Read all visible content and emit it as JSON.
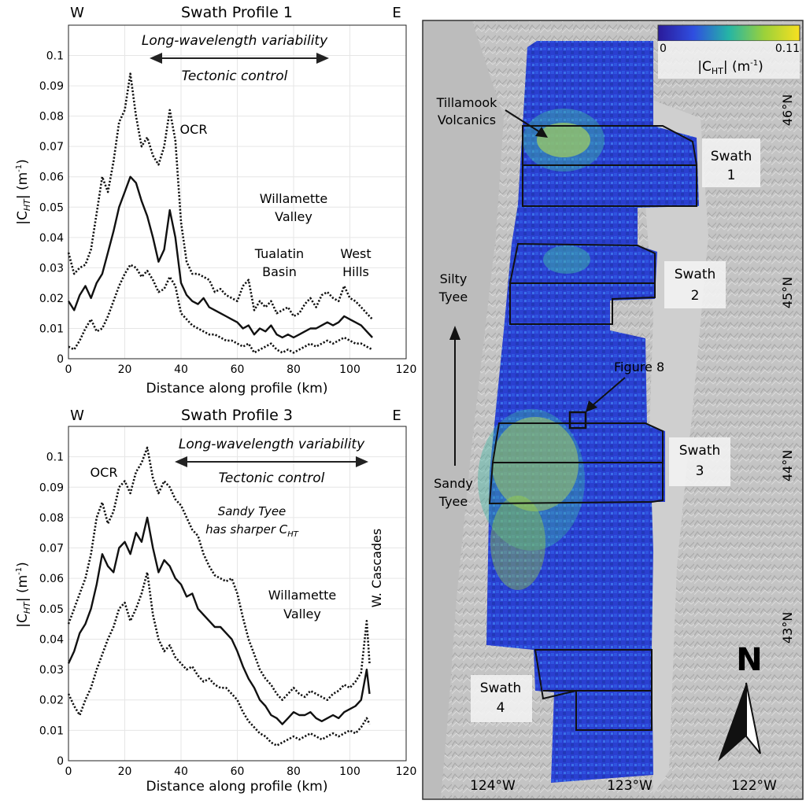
{
  "colors": {
    "series_line": "#111111",
    "grid": "#e6e6e6",
    "axis": "#222222",
    "map_land": "#c8c8c8",
    "map_background": "#b8b8b8",
    "map_label_box": "#f0f0f0",
    "colorbar_low": "#2a1a9a",
    "colorbar_mid": "#25b5a5",
    "colorbar_high": "#f8e020"
  },
  "chart_data": [
    {
      "type": "line",
      "title": "Swath Profile 1",
      "corner_left": "W",
      "corner_right": "E",
      "xlabel": "Distance along profile (km)",
      "ylabel_main": "|C",
      "ylabel_sub": "HT",
      "ylabel_tail": "| (m",
      "ylabel_sup": "-1",
      "ylabel_end": ")",
      "xlim": [
        0,
        120
      ],
      "ylim": [
        0,
        0.11
      ],
      "xticks": [
        "0",
        "20",
        "40",
        "60",
        "80",
        "100",
        "120"
      ],
      "yticks": [
        "0",
        "0.01",
        "0.02",
        "0.03",
        "0.04",
        "0.05",
        "0.06",
        "0.07",
        "0.08",
        "0.09",
        "0.1"
      ],
      "grid": true,
      "series": [
        {
          "style": "solid",
          "x": [
            0,
            2,
            4,
            6,
            8,
            10,
            12,
            14,
            16,
            18,
            20,
            22,
            24,
            26,
            28,
            30,
            32,
            34,
            36,
            38,
            40,
            42,
            44,
            46,
            48,
            50,
            52,
            54,
            56,
            58,
            60,
            62,
            64,
            66,
            68,
            70,
            72,
            74,
            76,
            78,
            80,
            82,
            84,
            86,
            88,
            90,
            92,
            94,
            96,
            98,
            100,
            102,
            104,
            106,
            108
          ],
          "y": [
            0.019,
            0.016,
            0.021,
            0.024,
            0.02,
            0.025,
            0.028,
            0.035,
            0.042,
            0.05,
            0.055,
            0.06,
            0.058,
            0.052,
            0.047,
            0.04,
            0.032,
            0.036,
            0.049,
            0.04,
            0.025,
            0.021,
            0.019,
            0.018,
            0.02,
            0.017,
            0.016,
            0.015,
            0.014,
            0.013,
            0.012,
            0.01,
            0.011,
            0.008,
            0.01,
            0.009,
            0.011,
            0.008,
            0.007,
            0.008,
            0.007,
            0.008,
            0.009,
            0.01,
            0.01,
            0.011,
            0.012,
            0.011,
            0.012,
            0.014,
            0.013,
            0.012,
            0.011,
            0.009,
            0.007
          ]
        },
        {
          "style": "dotted",
          "x": [
            0,
            2,
            4,
            6,
            8,
            10,
            12,
            14,
            16,
            18,
            20,
            22,
            24,
            26,
            28,
            30,
            32,
            34,
            36,
            38,
            40,
            42,
            44,
            46,
            48,
            50,
            52,
            54,
            56,
            58,
            60,
            62,
            64,
            66,
            68,
            70,
            72,
            74,
            76,
            78,
            80,
            82,
            84,
            86,
            88,
            90,
            92,
            94,
            96,
            98,
            100,
            102,
            104,
            106,
            108
          ],
          "y": [
            0.035,
            0.028,
            0.03,
            0.031,
            0.036,
            0.048,
            0.06,
            0.055,
            0.065,
            0.078,
            0.082,
            0.094,
            0.08,
            0.07,
            0.073,
            0.067,
            0.064,
            0.07,
            0.082,
            0.072,
            0.045,
            0.032,
            0.028,
            0.028,
            0.027,
            0.026,
            0.022,
            0.023,
            0.021,
            0.02,
            0.019,
            0.024,
            0.026,
            0.016,
            0.019,
            0.017,
            0.019,
            0.015,
            0.016,
            0.017,
            0.014,
            0.015,
            0.018,
            0.02,
            0.017,
            0.021,
            0.022,
            0.02,
            0.019,
            0.024,
            0.02,
            0.019,
            0.017,
            0.015,
            0.013
          ]
        },
        {
          "style": "dotted",
          "x": [
            0,
            2,
            4,
            6,
            8,
            10,
            12,
            14,
            16,
            18,
            20,
            22,
            24,
            26,
            28,
            30,
            32,
            34,
            36,
            38,
            40,
            42,
            44,
            46,
            48,
            50,
            52,
            54,
            56,
            58,
            60,
            62,
            64,
            66,
            68,
            70,
            72,
            74,
            76,
            78,
            80,
            82,
            84,
            86,
            88,
            90,
            92,
            94,
            96,
            98,
            100,
            102,
            104,
            106,
            108
          ],
          "y": [
            0.004,
            0.003,
            0.006,
            0.01,
            0.013,
            0.009,
            0.01,
            0.014,
            0.019,
            0.024,
            0.028,
            0.031,
            0.03,
            0.027,
            0.029,
            0.026,
            0.022,
            0.023,
            0.027,
            0.024,
            0.015,
            0.013,
            0.011,
            0.01,
            0.009,
            0.008,
            0.008,
            0.007,
            0.006,
            0.006,
            0.005,
            0.004,
            0.005,
            0.002,
            0.003,
            0.004,
            0.005,
            0.003,
            0.002,
            0.003,
            0.002,
            0.003,
            0.004,
            0.005,
            0.004,
            0.005,
            0.006,
            0.005,
            0.006,
            0.007,
            0.006,
            0.005,
            0.005,
            0.004,
            0.003
          ]
        }
      ],
      "annotations": {
        "banner_top": "Long-wavelength variability",
        "banner_bottom": "Tectonic control",
        "peak": "OCR",
        "valley_1": "Willamette",
        "valley_2": "Valley",
        "basin_1": "Tualatin",
        "basin_2": "Basin",
        "hills_1": "West",
        "hills_2": "Hills"
      }
    },
    {
      "type": "line",
      "title": "Swath Profile 3",
      "corner_left": "W",
      "corner_right": "E",
      "xlabel": "Distance along profile (km)",
      "ylabel_main": "|C",
      "ylabel_sub": "HT",
      "ylabel_tail": "| (m",
      "ylabel_sup": "-1",
      "ylabel_end": ")",
      "xlim": [
        0,
        120
      ],
      "ylim": [
        0,
        0.11
      ],
      "xticks": [
        "0",
        "20",
        "40",
        "60",
        "80",
        "100",
        "120"
      ],
      "yticks": [
        "0",
        "0.01",
        "0.02",
        "0.03",
        "0.04",
        "0.05",
        "0.06",
        "0.07",
        "0.08",
        "0.09",
        "0.1"
      ],
      "grid": true,
      "series": [
        {
          "style": "solid",
          "x": [
            0,
            2,
            4,
            6,
            8,
            10,
            12,
            14,
            16,
            18,
            20,
            22,
            24,
            26,
            28,
            30,
            32,
            34,
            36,
            38,
            40,
            42,
            44,
            46,
            48,
            50,
            52,
            54,
            56,
            58,
            60,
            62,
            64,
            66,
            68,
            70,
            72,
            74,
            76,
            78,
            80,
            82,
            84,
            86,
            88,
            90,
            92,
            94,
            96,
            98,
            100,
            102,
            104,
            106,
            107
          ],
          "y": [
            0.032,
            0.036,
            0.042,
            0.045,
            0.05,
            0.058,
            0.068,
            0.064,
            0.062,
            0.07,
            0.072,
            0.068,
            0.075,
            0.072,
            0.08,
            0.07,
            0.062,
            0.066,
            0.064,
            0.06,
            0.058,
            0.054,
            0.055,
            0.05,
            0.048,
            0.046,
            0.044,
            0.044,
            0.042,
            0.04,
            0.036,
            0.031,
            0.027,
            0.024,
            0.02,
            0.018,
            0.015,
            0.014,
            0.012,
            0.014,
            0.016,
            0.015,
            0.015,
            0.016,
            0.014,
            0.013,
            0.014,
            0.015,
            0.014,
            0.016,
            0.017,
            0.018,
            0.02,
            0.03,
            0.022
          ]
        },
        {
          "style": "dotted",
          "x": [
            0,
            2,
            4,
            6,
            8,
            10,
            12,
            14,
            16,
            18,
            20,
            22,
            24,
            26,
            28,
            30,
            32,
            34,
            36,
            38,
            40,
            42,
            44,
            46,
            48,
            50,
            52,
            54,
            56,
            58,
            60,
            62,
            64,
            66,
            68,
            70,
            72,
            74,
            76,
            78,
            80,
            82,
            84,
            86,
            88,
            90,
            92,
            94,
            96,
            98,
            100,
            102,
            104,
            106,
            107
          ],
          "y": [
            0.045,
            0.05,
            0.055,
            0.06,
            0.068,
            0.08,
            0.085,
            0.078,
            0.082,
            0.09,
            0.092,
            0.088,
            0.095,
            0.098,
            0.103,
            0.093,
            0.088,
            0.092,
            0.09,
            0.086,
            0.084,
            0.08,
            0.076,
            0.074,
            0.068,
            0.064,
            0.061,
            0.06,
            0.059,
            0.06,
            0.055,
            0.047,
            0.04,
            0.035,
            0.03,
            0.027,
            0.025,
            0.022,
            0.02,
            0.022,
            0.024,
            0.022,
            0.021,
            0.023,
            0.022,
            0.021,
            0.02,
            0.022,
            0.023,
            0.025,
            0.024,
            0.026,
            0.029,
            0.046,
            0.032
          ]
        },
        {
          "style": "dotted",
          "x": [
            0,
            2,
            4,
            6,
            8,
            10,
            12,
            14,
            16,
            18,
            20,
            22,
            24,
            26,
            28,
            30,
            32,
            34,
            36,
            38,
            40,
            42,
            44,
            46,
            48,
            50,
            52,
            54,
            56,
            58,
            60,
            62,
            64,
            66,
            68,
            70,
            72,
            74,
            76,
            78,
            80,
            82,
            84,
            86,
            88,
            90,
            92,
            94,
            96,
            98,
            100,
            102,
            104,
            106,
            107
          ],
          "y": [
            0.022,
            0.018,
            0.015,
            0.02,
            0.024,
            0.03,
            0.035,
            0.04,
            0.044,
            0.05,
            0.052,
            0.046,
            0.05,
            0.055,
            0.062,
            0.048,
            0.04,
            0.036,
            0.038,
            0.034,
            0.032,
            0.03,
            0.031,
            0.028,
            0.026,
            0.027,
            0.025,
            0.024,
            0.024,
            0.022,
            0.02,
            0.016,
            0.013,
            0.011,
            0.009,
            0.008,
            0.006,
            0.005,
            0.006,
            0.007,
            0.008,
            0.007,
            0.008,
            0.009,
            0.008,
            0.007,
            0.008,
            0.009,
            0.008,
            0.009,
            0.01,
            0.009,
            0.011,
            0.014,
            0.012
          ]
        }
      ],
      "annotations": {
        "banner_top": "Long-wavelength variability",
        "banner_bottom": "Tectonic control",
        "peak": "OCR",
        "note_1": "Sandy Tyee",
        "note_2": "has sharper C",
        "note_sub": "HT",
        "valley_1": "Willamette",
        "valley_2": "Valley",
        "cascades": "W. Cascades"
      }
    }
  ],
  "map": {
    "colorbar": {
      "min": "0",
      "max": "0.11",
      "label_main": "|C",
      "label_sub": "HT",
      "label_tail": "| (m",
      "label_sup": "-1",
      "label_end": ")"
    },
    "labels": {
      "tillamook_1": "Tillamook",
      "tillamook_2": "Volcanics",
      "swath1_1": "Swath",
      "swath1_2": "1",
      "swath2_1": "Swath",
      "swath2_2": "2",
      "swath3_1": "Swath",
      "swath3_2": "3",
      "swath4_1": "Swath",
      "swath4_2": "4",
      "figure8": "Figure 8",
      "silty_1": "Silty",
      "silty_2": "Tyee",
      "sandy_1": "Sandy",
      "sandy_2": "Tyee",
      "north": "N"
    },
    "lat_labels": [
      "46°N",
      "45°N",
      "44°N",
      "43°N"
    ],
    "lon_labels": [
      "124°W",
      "123°W",
      "122°W"
    ]
  }
}
